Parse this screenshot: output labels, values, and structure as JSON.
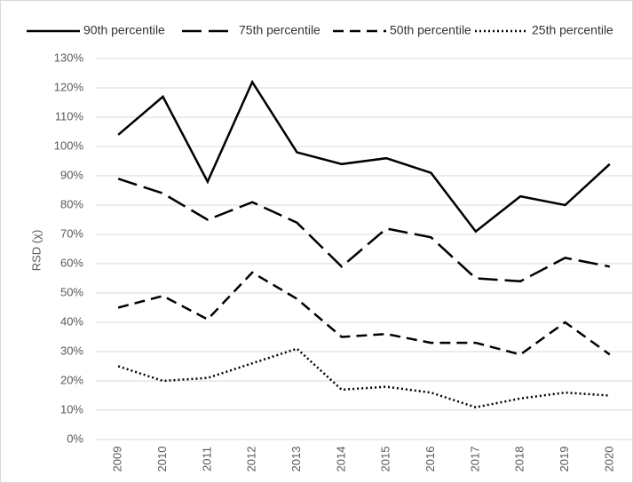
{
  "chart_data": {
    "type": "line",
    "y_label": "RSD (χ)",
    "categories": [
      "2009",
      "2010",
      "2011",
      "2012",
      "2013",
      "2014",
      "2015",
      "2016",
      "2017",
      "2018",
      "2019",
      "2020"
    ],
    "series": [
      {
        "name": "90th percentile",
        "color": "#000000",
        "dash": "solid",
        "values": [
          104,
          117,
          88,
          122,
          98,
          94,
          96,
          91,
          71,
          83,
          80,
          94
        ]
      },
      {
        "name": "75th percentile",
        "color": "#000000",
        "dash": "long",
        "values": [
          89,
          84,
          75,
          81,
          74,
          59,
          72,
          69,
          55,
          54,
          62,
          59
        ]
      },
      {
        "name": "50th percentile",
        "color": "#000000",
        "dash": "medium",
        "values": [
          45,
          49,
          41,
          57,
          48,
          35,
          36,
          33,
          33,
          29,
          40,
          29
        ]
      },
      {
        "name": "25th percentile",
        "color": "#000000",
        "dash": "dot",
        "values": [
          25,
          20,
          21,
          26,
          31,
          17,
          18,
          16,
          11,
          14,
          16,
          15
        ]
      }
    ],
    "ylim": [
      0,
      130
    ],
    "yticks": [
      {
        "value": 0,
        "label": "0%"
      },
      {
        "value": 10,
        "label": "10%"
      },
      {
        "value": 20,
        "label": "20%"
      },
      {
        "value": 30,
        "label": "30%"
      },
      {
        "value": 40,
        "label": "40%"
      },
      {
        "value": 50,
        "label": "50%"
      },
      {
        "value": 60,
        "label": "60%"
      },
      {
        "value": 70,
        "label": "70%"
      },
      {
        "value": 80,
        "label": "80%"
      },
      {
        "value": 90,
        "label": "90%"
      },
      {
        "value": 100,
        "label": "100%"
      },
      {
        "value": 110,
        "label": "110%"
      },
      {
        "value": 120,
        "label": "120%"
      },
      {
        "value": 130,
        "label": "130%"
      }
    ],
    "grid": true,
    "legend": "top"
  }
}
